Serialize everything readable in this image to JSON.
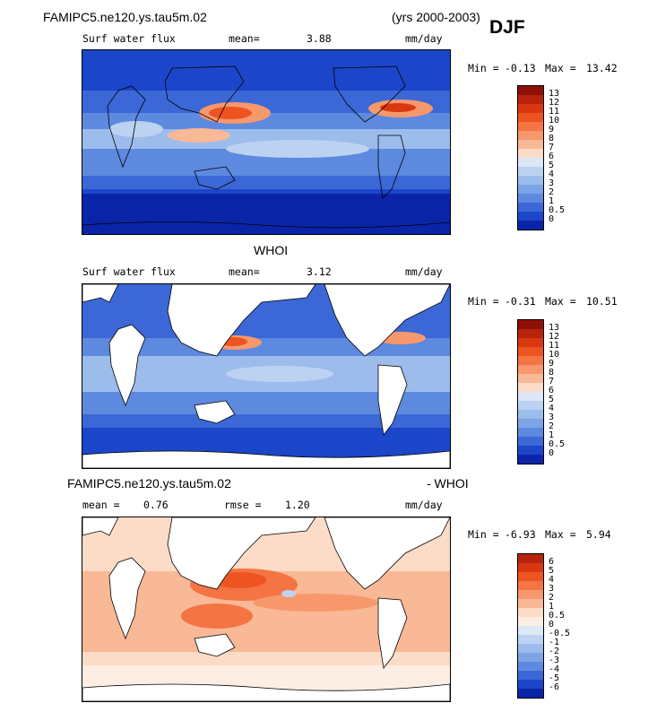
{
  "header": {
    "case_name": "FAMIPC5.ne120.ys.tau5m.02",
    "years": "(yrs 2000-2003)",
    "season": "DJF"
  },
  "panel1": {
    "field": "Surf water flux",
    "mean_label": "mean=",
    "mean_value": "3.88",
    "units": "mm/day",
    "min_label": "Min =",
    "min_value": "-0.13",
    "max_label": "Max =",
    "max_value": "13.42"
  },
  "panel2": {
    "title": "WHOI",
    "field": "Surf water flux",
    "mean_label": "mean=",
    "mean_value": "3.12",
    "units": "mm/day",
    "min_label": "Min =",
    "min_value": "-0.31",
    "max_label": "Max =",
    "max_value": "10.51"
  },
  "panel3": {
    "title_left": "FAMIPC5.ne120.ys.tau5m.02",
    "title_right": "- WHOI",
    "mean_label": "mean =",
    "mean_value": "0.76",
    "rmse_label": "rmse =",
    "rmse_value": "1.20",
    "units": "mm/day",
    "min_label": "Min =",
    "min_value": "-6.93",
    "max_label": "Max =",
    "max_value": "5.94"
  },
  "chart_data": [
    {
      "type": "heatmap",
      "title": "FAMIPC5.ne120.ys.tau5m.02 Surf water flux",
      "units": "mm/day",
      "mean": 3.88,
      "min": -0.13,
      "max": 13.42,
      "colorbar_levels": [
        "13",
        "12",
        "11",
        "10",
        "9",
        "8",
        "7",
        "6",
        "5",
        "4",
        "3",
        "2",
        "1",
        "0.5",
        "0"
      ],
      "colorbar_colors": [
        "#8e0f07",
        "#b8230c",
        "#d9370f",
        "#ee5421",
        "#f47443",
        "#f7986c",
        "#f9b896",
        "#fcdcc7",
        "#dce7f7",
        "#bcd2f1",
        "#9cbcec",
        "#7ca4e6",
        "#5d89df",
        "#3b68d6",
        "#1c46c9",
        "#0a24a8"
      ]
    },
    {
      "type": "heatmap",
      "title": "WHOI Surf water flux",
      "units": "mm/day",
      "mean": 3.12,
      "min": -0.31,
      "max": 10.51,
      "colorbar_levels": [
        "13",
        "12",
        "11",
        "10",
        "9",
        "8",
        "7",
        "6",
        "5",
        "4",
        "3",
        "2",
        "1",
        "0.5",
        "0"
      ],
      "colorbar_colors": [
        "#8e0f07",
        "#b8230c",
        "#d9370f",
        "#ee5421",
        "#f47443",
        "#f7986c",
        "#f9b896",
        "#fcdcc7",
        "#dce7f7",
        "#bcd2f1",
        "#9cbcec",
        "#7ca4e6",
        "#5d89df",
        "#3b68d6",
        "#1c46c9",
        "#0a24a8"
      ]
    },
    {
      "type": "heatmap",
      "title": "FAMIPC5.ne120.ys.tau5m.02 - WHOI",
      "units": "mm/day",
      "mean": 0.76,
      "rmse": 1.2,
      "min": -6.93,
      "max": 5.94,
      "colorbar_levels": [
        "6",
        "5",
        "4",
        "3",
        "2",
        "1",
        "0.5",
        "0",
        "-0.5",
        "-1",
        "-2",
        "-3",
        "-4",
        "-5",
        "-6"
      ],
      "colorbar_colors": [
        "#b8230c",
        "#d9370f",
        "#ee5421",
        "#f47443",
        "#f7986c",
        "#f9b896",
        "#fcdcc7",
        "#fdeee4",
        "#dde8f7",
        "#bcd2f1",
        "#9cbcec",
        "#7ca4e6",
        "#5d89df",
        "#3b68d6",
        "#1c46c9",
        "#0a24a8"
      ]
    }
  ]
}
